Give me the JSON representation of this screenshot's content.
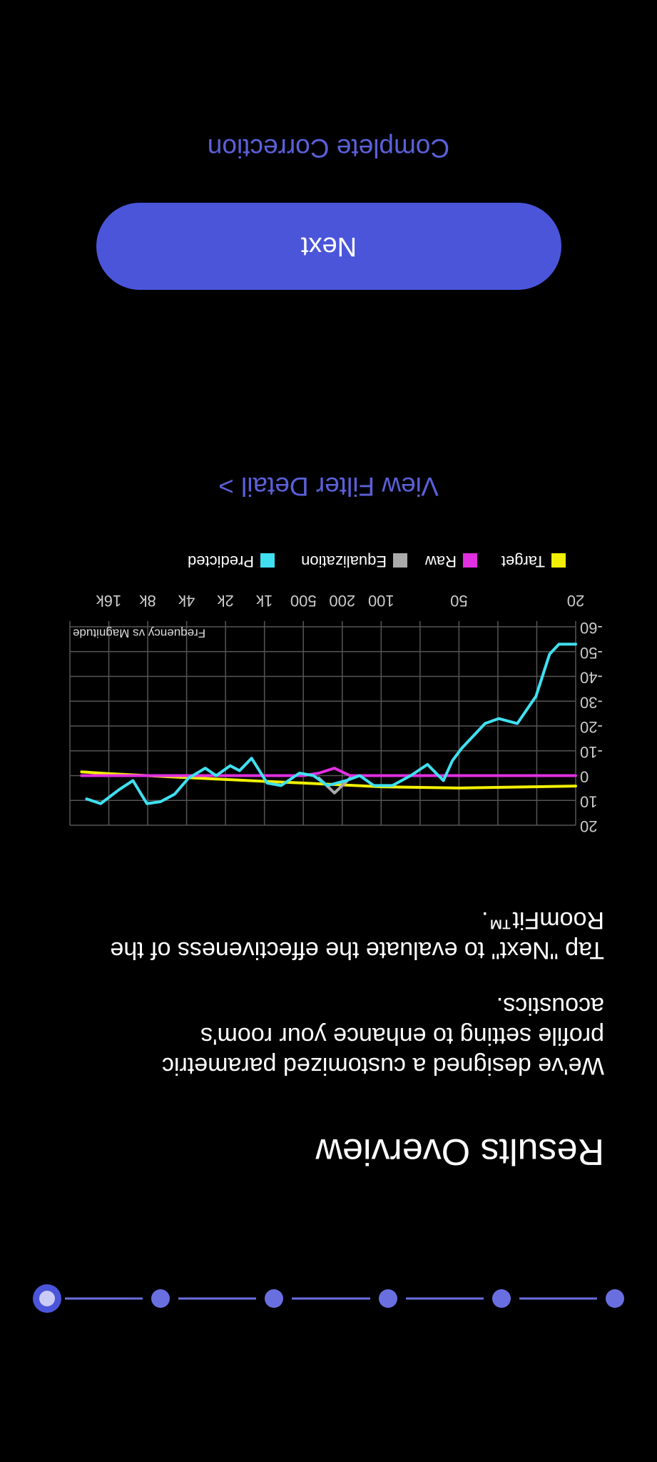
{
  "header": {
    "title": "Results Overview"
  },
  "paragraphs": [
    "We've designed a customized parametric profile setting to enhance your room's acoustics.",
    "Tap \"Next\" to evaluate the effectiveness of the RoomFit™."
  ],
  "chart_data": {
    "type": "line",
    "title": "Frequency vs Magnitude",
    "xlim": [
      0,
      13
    ],
    "xticks": [
      {
        "value": 0,
        "label": "20"
      },
      {
        "value": 1,
        "label": null
      },
      {
        "value": 2,
        "label": null
      },
      {
        "value": 3,
        "label": "50"
      },
      {
        "value": 4,
        "label": null
      },
      {
        "value": 5,
        "label": "100"
      },
      {
        "value": 6,
        "label": "200"
      },
      {
        "value": 7,
        "label": "500"
      },
      {
        "value": 8,
        "label": "1k"
      },
      {
        "value": 9,
        "label": "2k"
      },
      {
        "value": 10,
        "label": "4k"
      },
      {
        "value": 11,
        "label": "8k"
      },
      {
        "value": 12,
        "label": "16k"
      },
      {
        "value": 13,
        "label": null
      }
    ],
    "ylim": [
      -60,
      20
    ],
    "yticks": [
      20,
      10,
      0,
      -10,
      -20,
      -30,
      -40,
      -50,
      -60
    ],
    "grid": true,
    "series": [
      {
        "name": "Target",
        "color": "#f2f000",
        "x": [
          0,
          3,
          5,
          7,
          8,
          10,
          12,
          12.7
        ],
        "values": [
          4.2,
          5,
          4.5,
          3,
          2.3,
          0.8,
          -0.8,
          -1.5
        ]
      },
      {
        "name": "Raw",
        "color": "#e030e0",
        "x": [
          0,
          5.8,
          6.2,
          6.6,
          7,
          12.7
        ],
        "values": [
          0,
          0,
          -3,
          -1,
          0,
          0
        ]
      },
      {
        "name": "Equalization",
        "color": "#aaaaaa",
        "x": [
          5.8,
          6.2,
          6.6
        ],
        "values": [
          1,
          7,
          1
        ]
      },
      {
        "name": "Predicted",
        "color": "#40e0f0",
        "x": [
          0,
          0.43,
          0.67,
          1.02,
          1.5,
          1.98,
          2.33,
          2.93,
          3.17,
          3.4,
          3.81,
          4.24,
          4.71,
          5.19,
          5.55,
          5.9,
          6.38,
          6.74,
          7.1,
          7.57,
          7.93,
          8.33,
          8.64,
          8.88,
          9.24,
          9.52,
          9.95,
          10.31,
          10.67,
          11.02,
          11.38,
          11.74,
          12.21,
          12.57
        ],
        "values": [
          -53,
          -53,
          -49,
          -32,
          -21,
          -23,
          -21,
          -11,
          -6,
          2,
          -4.5,
          0,
          4,
          4,
          0,
          2,
          4,
          0,
          -1,
          4,
          3,
          -7,
          -2,
          -4,
          0,
          -3,
          1,
          7.5,
          10.5,
          11.3,
          2,
          5.7,
          11.3,
          9.4
        ]
      }
    ]
  },
  "link": "View Filter Detail >",
  "button": "Next",
  "footer_link": "Complete Correction"
}
